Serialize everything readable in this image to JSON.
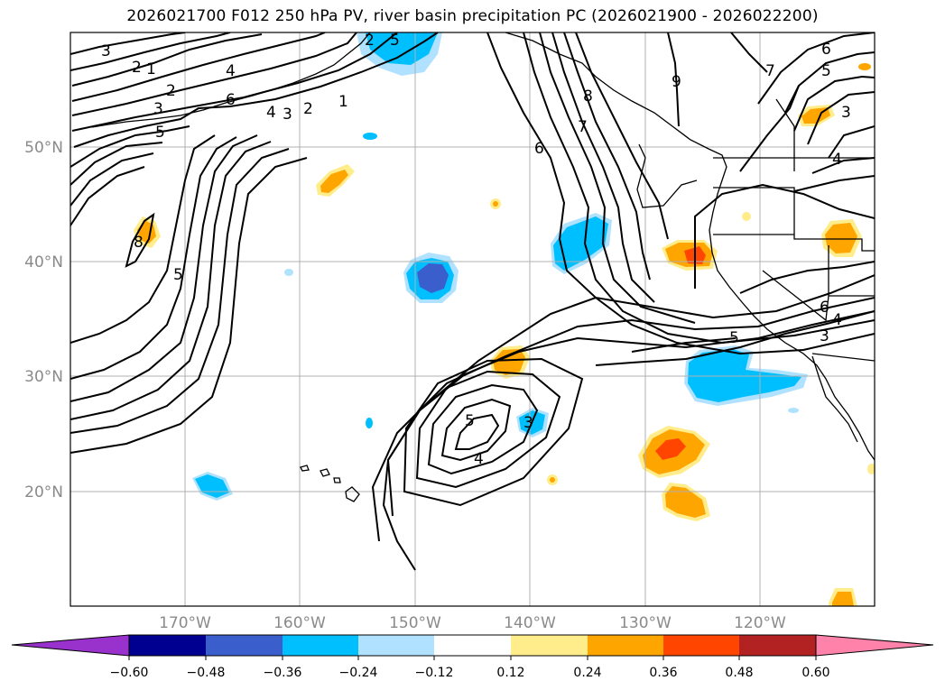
{
  "title": "2026021700 F012 250 hPa PV, river basin precipitation PC (2026021900 - 2026022200)",
  "lat_labels": [
    "50°N",
    "40°N",
    "30°N",
    "20°N"
  ],
  "lon_labels": [
    "170°W",
    "160°W",
    "150°W",
    "140°W",
    "130°W",
    "120°W"
  ],
  "colorbar": {
    "tick_labels": [
      "−0.60",
      "−0.48",
      "−0.36",
      "−0.24",
      "−0.12",
      "0.12",
      "0.24",
      "0.36",
      "0.48",
      "0.60"
    ],
    "colors": [
      "#9932cc",
      "#000090",
      "#3a5fcd",
      "#00bfff",
      "#b0e2ff",
      "#ffffff",
      "#ffec8b",
      "#ffa500",
      "#ff4500",
      "#b22222",
      "#ff82ab"
    ]
  },
  "contour_labels": [
    "3",
    "2",
    "1",
    "2",
    "3",
    "5",
    "4",
    "6",
    "4",
    "3",
    "2",
    "1",
    "8",
    "5",
    "2",
    "5",
    "5",
    "4",
    "3",
    "8",
    "7",
    "6",
    "9",
    "6",
    "5",
    "7",
    "3",
    "4",
    "6",
    "4",
    "5",
    "3"
  ],
  "precip_colors": {
    "light_blue": "#b0e2ff",
    "blue": "#00bfff",
    "royal_blue": "#3a5fcd",
    "yellow": "#ffec8b",
    "orange": "#ffa500",
    "red_orange": "#ff4500"
  }
}
